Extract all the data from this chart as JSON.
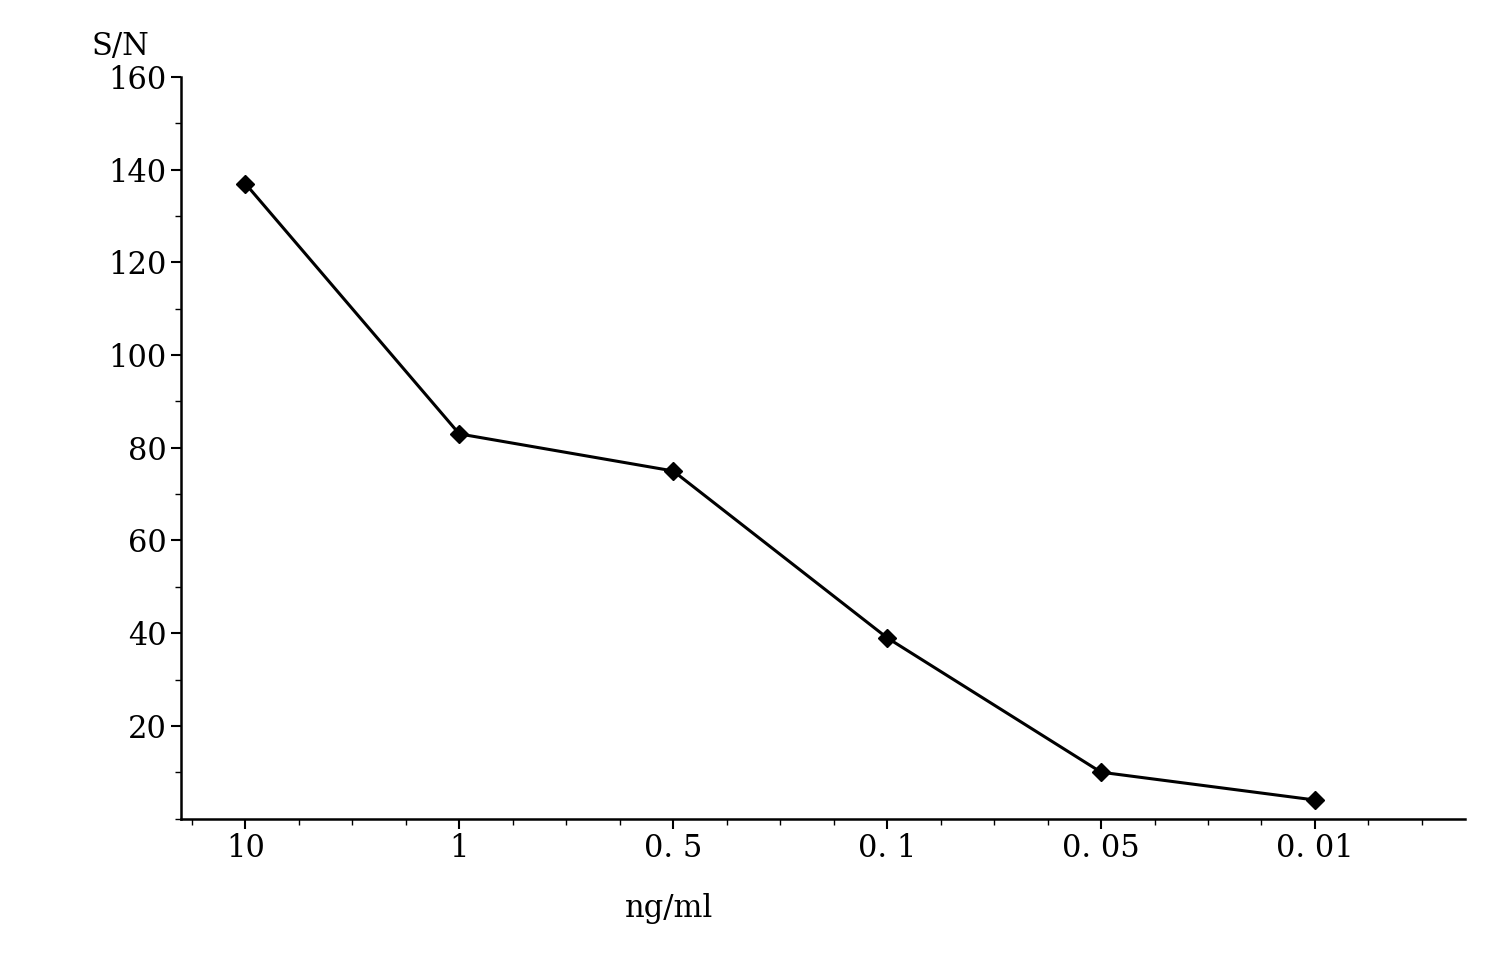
{
  "x_labels": [
    "10",
    "1",
    "0. 5",
    "0. 1",
    "0. 05",
    "0. 01"
  ],
  "x_positions": [
    0,
    1,
    2,
    3,
    4,
    5
  ],
  "y_values": [
    137,
    83,
    75,
    39,
    10,
    4
  ],
  "ylabel": "S/N",
  "xlabel": "ng/ml",
  "ylim": [
    0,
    160
  ],
  "yticks": [
    20,
    40,
    60,
    80,
    100,
    120,
    140,
    160
  ],
  "line_color": "#000000",
  "marker": "D",
  "marker_size": 9,
  "marker_facecolor": "#000000",
  "linewidth": 2.2,
  "background_color": "#ffffff",
  "ylabel_fontsize": 22,
  "xlabel_fontsize": 22,
  "tick_fontsize": 22,
  "spine_linewidth": 1.8
}
